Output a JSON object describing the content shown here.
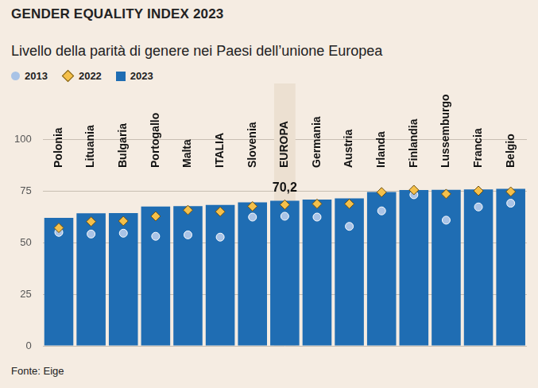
{
  "chart_data": {
    "type": "bar",
    "title": "GENDER EQUALITY INDEX 2023",
    "subtitle": "Livello della parità di genere nei Paesi dell’unione Europea",
    "source": "Fonte: Eige",
    "categories": [
      "Polonia",
      "Lituania",
      "Bulgaria",
      "Portogallo",
      "Malta",
      "ITALIA",
      "Slovenia",
      "EUROPA",
      "Germania",
      "Austria",
      "Irlanda",
      "Finlandia",
      "Lussemburgo",
      "Francia",
      "Belgio"
    ],
    "series": [
      {
        "name": "2013",
        "type": "scatter",
        "marker": "circle",
        "color": "#a9c3e6",
        "values": [
          54.9,
          54.1,
          54.5,
          53.0,
          53.7,
          52.6,
          62.3,
          62.7,
          62.3,
          57.8,
          65.3,
          73.1,
          60.8,
          67.2,
          69.0
        ]
      },
      {
        "name": "2022",
        "type": "scatter",
        "marker": "diamond",
        "color": "#f5c04a",
        "values": [
          57.1,
          60.1,
          60.4,
          62.7,
          65.7,
          64.9,
          67.5,
          68.3,
          68.7,
          68.7,
          74.3,
          75.4,
          73.5,
          75.0,
          74.6
        ]
      },
      {
        "name": "2023",
        "type": "bar",
        "marker": "square",
        "color": "#1f6db3",
        "values": [
          61.9,
          64.1,
          64.2,
          67.4,
          67.6,
          68.2,
          69.4,
          70.2,
          70.8,
          71.3,
          74.4,
          75.4,
          75.5,
          75.7,
          76.0
        ]
      }
    ],
    "annotations": [
      {
        "category": "EUROPA",
        "value": 70.2,
        "label": "70,2"
      }
    ],
    "ylim": [
      0,
      100
    ],
    "yticks": [
      0,
      25,
      50,
      75,
      100
    ],
    "grid": true
  }
}
